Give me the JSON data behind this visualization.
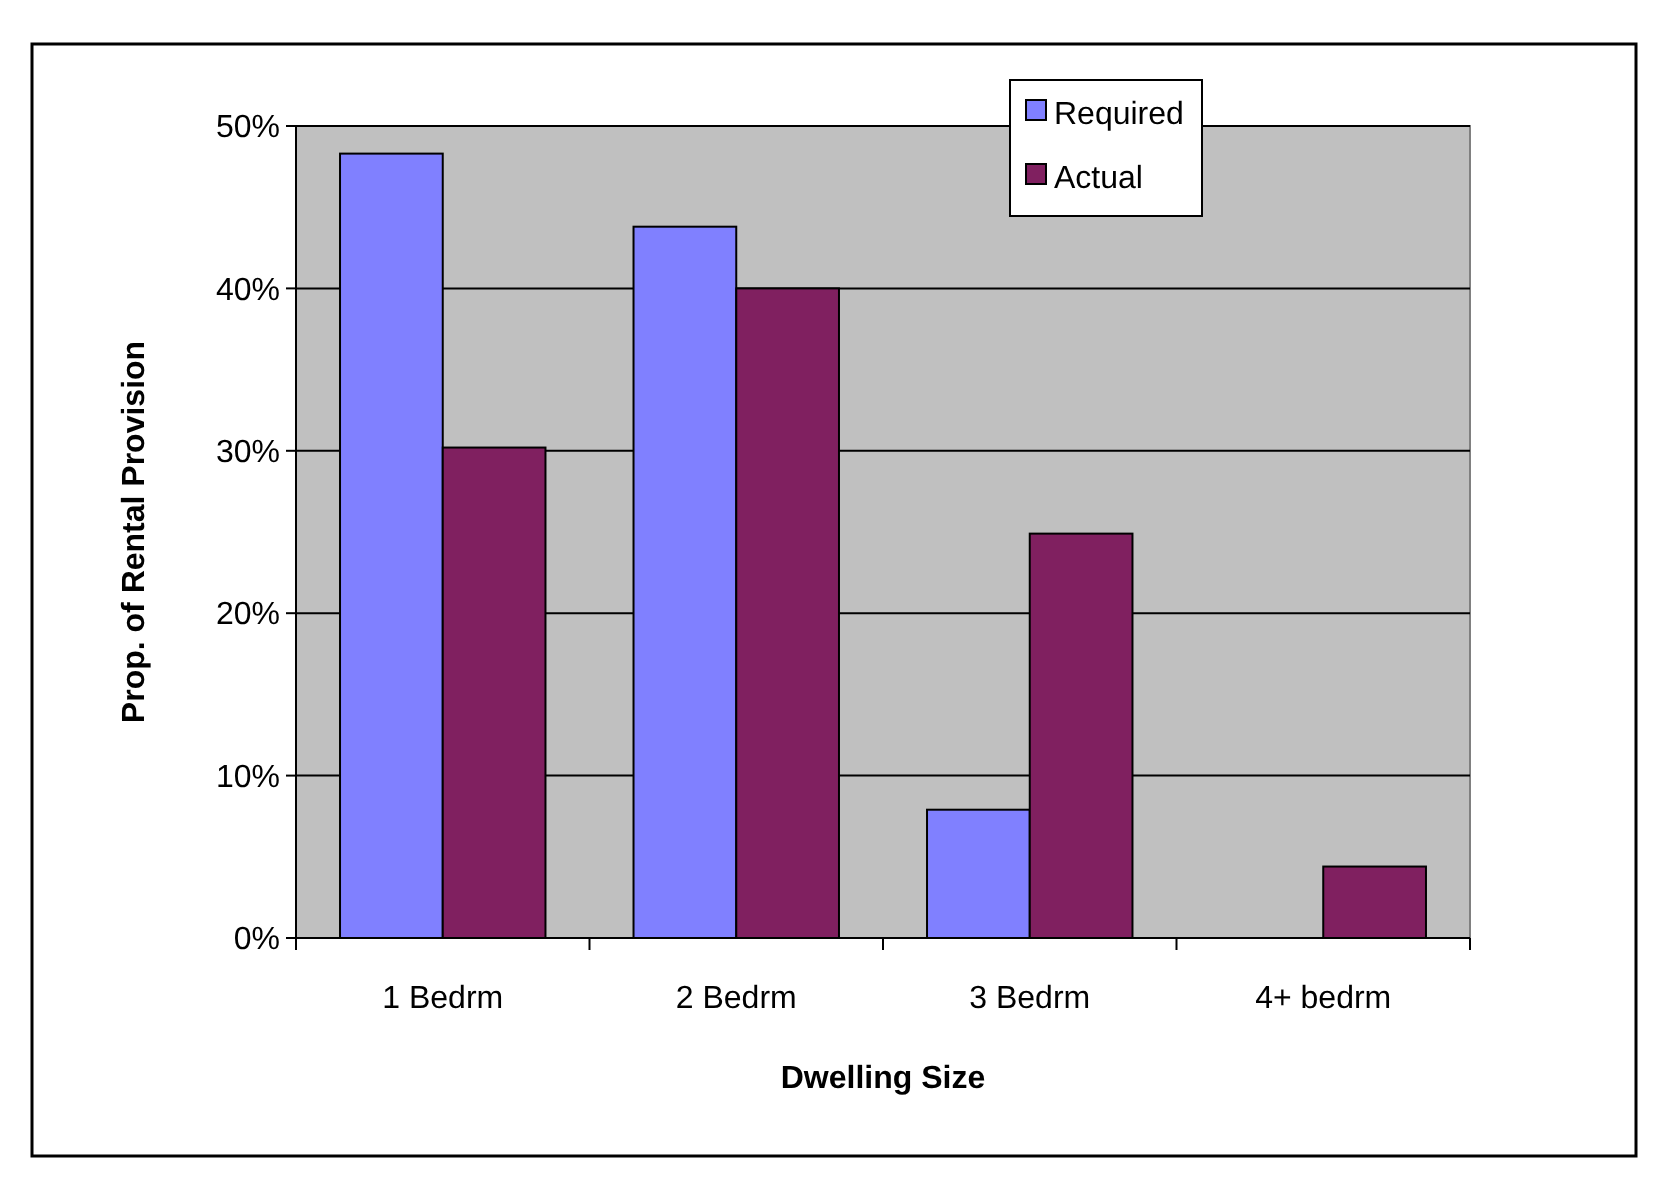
{
  "chart_data": {
    "type": "bar",
    "xlabel": "Dwelling Size",
    "ylabel": "Prop. of Rental Provision",
    "categories": [
      "1 Bedrm",
      "2 Bedrm",
      "3 Bedrm",
      "4+ bedrm"
    ],
    "series": [
      {
        "name": "Required",
        "color": "#8080ff",
        "values": [
          48.3,
          43.8,
          7.9,
          null
        ]
      },
      {
        "name": "Actual",
        "color": "#802060",
        "values": [
          30.2,
          40,
          24.9,
          4.4
        ]
      }
    ],
    "ylim": [
      0,
      50
    ],
    "yticks": [
      {
        "value": 0,
        "label": "0%"
      },
      {
        "value": 10,
        "label": "10%"
      },
      {
        "value": 20,
        "label": "20%"
      },
      {
        "value": 30,
        "label": "30%"
      },
      {
        "value": 40,
        "label": "40%"
      },
      {
        "value": 50,
        "label": "50%"
      }
    ],
    "grid": "y",
    "legend": "top right"
  }
}
